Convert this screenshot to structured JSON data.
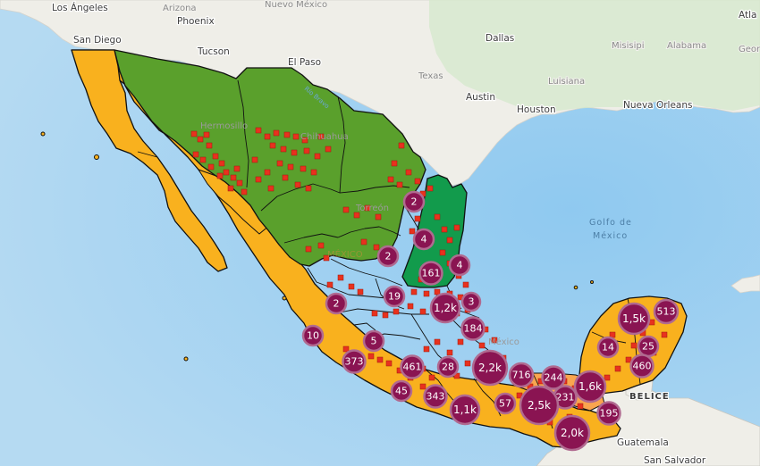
{
  "colors": {
    "ocean": "#a8d3ef",
    "land": "#f1efe9",
    "land_usa": "#ecebe5",
    "usa_green": "#d4e6cc",
    "green": "#5aa02c",
    "teal": "#129b4c",
    "orange": "#f9b11e",
    "light_orange": "#f9a54f",
    "cluster": "#8a1452",
    "cluster_ring": "#b16a8f",
    "marker": "#e8321e"
  },
  "labels": {
    "usa_cities": [
      {
        "name": "Los Ángeles"
      },
      {
        "name": "San Diego"
      },
      {
        "name": "Phoenix"
      },
      {
        "name": "Tucson"
      },
      {
        "name": "El Paso"
      },
      {
        "name": "Dallas"
      },
      {
        "name": "Austin"
      },
      {
        "name": "Houston"
      },
      {
        "name": "Nueva Orleans"
      },
      {
        "name": "Atla"
      }
    ],
    "usa_states": [
      {
        "name": "Arizona"
      },
      {
        "name": "Nuevo México"
      },
      {
        "name": "Texas"
      },
      {
        "name": "Misisipi"
      },
      {
        "name": "Alabama"
      },
      {
        "name": "Luisiana"
      },
      {
        "name": "Geor"
      }
    ],
    "mexico_cities": [
      {
        "name": "Hermosillo"
      },
      {
        "name": "Chihuahua"
      },
      {
        "name": "Torreón"
      },
      {
        "name": "México"
      }
    ],
    "water": {
      "gulf_line1": "Golfo de",
      "gulf_line2": "México",
      "river": "Río Bravo"
    },
    "countries": [
      {
        "name": "BELICE"
      },
      {
        "name": "Guatemala"
      },
      {
        "name": "San Salvador"
      }
    ],
    "mexico_faint": "MÉXICO"
  },
  "clusters": [
    {
      "label": "2"
    },
    {
      "label": "4"
    },
    {
      "label": "2"
    },
    {
      "label": "161"
    },
    {
      "label": "4"
    },
    {
      "label": "2"
    },
    {
      "label": "19"
    },
    {
      "label": "1,2k"
    },
    {
      "label": "3"
    },
    {
      "label": "184"
    },
    {
      "label": "10"
    },
    {
      "label": "5"
    },
    {
      "label": "373"
    },
    {
      "label": "461"
    },
    {
      "label": "28"
    },
    {
      "label": "2,2k"
    },
    {
      "label": "716"
    },
    {
      "label": "244"
    },
    {
      "label": "45"
    },
    {
      "label": "343"
    },
    {
      "label": "231"
    },
    {
      "label": "1,6k"
    },
    {
      "label": "57"
    },
    {
      "label": "1,1k"
    },
    {
      "label": "2,5k"
    },
    {
      "label": "195"
    },
    {
      "label": "2,0k"
    },
    {
      "label": "1,5k"
    },
    {
      "label": "513"
    },
    {
      "label": "14"
    },
    {
      "label": "25"
    },
    {
      "label": "460"
    }
  ]
}
